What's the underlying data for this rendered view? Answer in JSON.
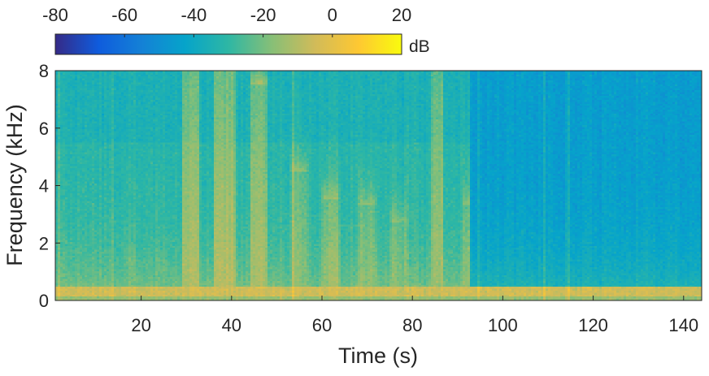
{
  "chart_data": {
    "type": "heatmap",
    "title": "",
    "xlabel": "Time (s)",
    "ylabel": "Frequency (kHz)",
    "xlim": [
      1,
      144
    ],
    "ylim": [
      0,
      8
    ],
    "xticks": [
      20,
      40,
      60,
      80,
      100,
      120,
      140
    ],
    "xtick_labels": [
      "20",
      "40",
      "60",
      "80",
      "100",
      "120",
      "140"
    ],
    "yticks": [
      0,
      2,
      4,
      6,
      8
    ],
    "ytick_labels": [
      "0",
      "2",
      "4",
      "6",
      "8"
    ],
    "colorbar": {
      "label": "dB",
      "location": "top",
      "colormap": "parula",
      "clim": [
        -80,
        20
      ],
      "ticks": [
        -80,
        -60,
        -40,
        -20,
        0,
        20
      ],
      "tick_labels": [
        "-80",
        "-60",
        "-40",
        "-20",
        "0",
        "20"
      ],
      "colors": [
        "#352a87",
        "#0f5cdd",
        "#1481d6",
        "#06a4ca",
        "#2eb7a4",
        "#87bf77",
        "#d1bb59",
        "#fec832",
        "#f9fb0e"
      ]
    },
    "grid": false,
    "summary_levels_db": {
      "low_band_0_to_0.4_kHz": -5,
      "speech_bursts_t_30_to_93": -15,
      "background_t_1_to_93": -32,
      "background_t_93_to_144": -45
    },
    "energy_bursts": [
      {
        "t_start": 16,
        "t_end": 19,
        "f_top_khz": 1.2,
        "level_db": -22
      },
      {
        "t_start": 23,
        "t_end": 26,
        "f_top_khz": 1.0,
        "level_db": -22
      },
      {
        "t_start": 29,
        "t_end": 33,
        "f_top_khz": 8.0,
        "level_db": -12
      },
      {
        "t_start": 36,
        "t_end": 41,
        "f_top_khz": 8.0,
        "level_db": -10
      },
      {
        "t_start": 44,
        "t_end": 48,
        "f_top_khz": 7.5,
        "level_db": -13
      },
      {
        "t_start": 53,
        "t_end": 57,
        "f_top_khz": 4.5,
        "level_db": -18
      },
      {
        "t_start": 60,
        "t_end": 64,
        "f_top_khz": 3.5,
        "level_db": -15
      },
      {
        "t_start": 68,
        "t_end": 72,
        "f_top_khz": 3.3,
        "level_db": -17
      },
      {
        "t_start": 75,
        "t_end": 79,
        "f_top_khz": 2.7,
        "level_db": -18
      },
      {
        "t_start": 84,
        "t_end": 87,
        "f_top_khz": 8.0,
        "level_db": -14
      },
      {
        "t_start": 91,
        "t_end": 93,
        "f_top_khz": 3.3,
        "level_db": -18
      }
    ]
  }
}
